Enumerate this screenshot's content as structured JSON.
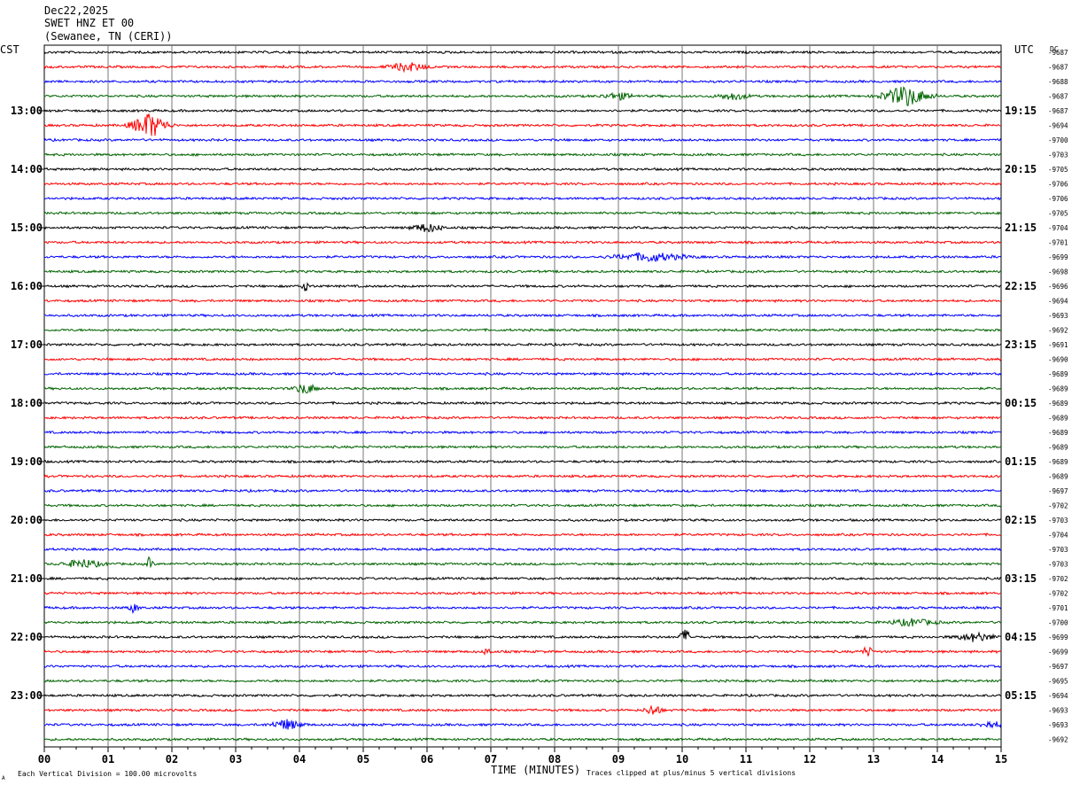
{
  "header": {
    "date": "Dec22,2025",
    "station": "SWET HNZ ET 00",
    "location": "(Sewanee, TN (CERI))"
  },
  "left_zone": "CST",
  "right_zone": "UTC",
  "dc_label": "DC",
  "footer": {
    "xlabel": "TIME (MINUTES)",
    "scale_note": "Each Vertical Division =  100.00 microvolts",
    "clip_note": "Traces clipped at plus/minus 5 vertical divisions",
    "corner_mark": "A"
  },
  "chart_data": {
    "type": "line",
    "title": "SWET HNZ ET 00",
    "xlabel": "TIME (MINUTES)",
    "xlim": [
      0,
      15
    ],
    "x_ticks": [
      "00",
      "01",
      "02",
      "03",
      "04",
      "05",
      "06",
      "07",
      "08",
      "09",
      "10",
      "11",
      "12",
      "13",
      "14",
      "15"
    ],
    "trace_colors": [
      "#000000",
      "#ff0000",
      "#0000ff",
      "#006400"
    ],
    "left_hour_labels": [
      "13:00",
      "14:00",
      "15:00",
      "16:00",
      "17:00",
      "18:00",
      "19:00",
      "20:00",
      "21:00",
      "22:00",
      "23:00"
    ],
    "right_hour_labels": [
      "19:15",
      "20:15",
      "21:15",
      "22:15",
      "23:15",
      "00:15",
      "01:15",
      "02:15",
      "03:15",
      "04:15",
      "05:15"
    ],
    "hour_label_first_trace": 4,
    "dc_offsets": [
      "-9687",
      "-9687",
      "-9688",
      "-9687",
      "-9687",
      "-9694",
      "-9700",
      "-9703",
      "-9705",
      "-9706",
      "-9706",
      "-9705",
      "-9704",
      "-9701",
      "-9699",
      "-9698",
      "-9696",
      "-9694",
      "-9693",
      "-9692",
      "-9691",
      "-9690",
      "-9689",
      "-9689",
      "-9689",
      "-9689",
      "-9689",
      "-9689",
      "-9689",
      "-9689",
      "-9697",
      "-9702",
      "-9703",
      "-9704",
      "-9703",
      "-9703",
      "-9702",
      "-9702",
      "-9701",
      "-9700",
      "-9699",
      "-9699",
      "-9697",
      "-9695",
      "-9694",
      "-9693",
      "-9693",
      "-9692"
    ],
    "events": [
      {
        "trace": 1,
        "minute": 5.7,
        "amp": 5,
        "dur": 0.5
      },
      {
        "trace": 3,
        "minute": 9.0,
        "amp": 4,
        "dur": 0.4
      },
      {
        "trace": 3,
        "minute": 10.8,
        "amp": 4,
        "dur": 0.4
      },
      {
        "trace": 3,
        "minute": 13.5,
        "amp": 12,
        "dur": 0.6
      },
      {
        "trace": 5,
        "minute": 1.65,
        "amp": 15,
        "dur": 0.45
      },
      {
        "trace": 12,
        "minute": 6.0,
        "amp": 5,
        "dur": 0.4
      },
      {
        "trace": 14,
        "minute": 9.5,
        "amp": 5,
        "dur": 0.9
      },
      {
        "trace": 16,
        "minute": 4.1,
        "amp": 5,
        "dur": 0.15
      },
      {
        "trace": 23,
        "minute": 4.1,
        "amp": 6,
        "dur": 0.3
      },
      {
        "trace": 35,
        "minute": 0.6,
        "amp": 5,
        "dur": 0.5
      },
      {
        "trace": 35,
        "minute": 1.65,
        "amp": 8,
        "dur": 0.08
      },
      {
        "trace": 38,
        "minute": 1.4,
        "amp": 5,
        "dur": 0.15
      },
      {
        "trace": 39,
        "minute": 13.6,
        "amp": 4,
        "dur": 0.6
      },
      {
        "trace": 40,
        "minute": 10.05,
        "amp": 9,
        "dur": 0.15
      },
      {
        "trace": 40,
        "minute": 14.6,
        "amp": 5,
        "dur": 0.5
      },
      {
        "trace": 41,
        "minute": 12.9,
        "amp": 6,
        "dur": 0.15
      },
      {
        "trace": 41,
        "minute": 6.95,
        "amp": 5,
        "dur": 0.1
      },
      {
        "trace": 45,
        "minute": 9.55,
        "amp": 7,
        "dur": 0.2
      },
      {
        "trace": 46,
        "minute": 3.8,
        "amp": 6,
        "dur": 0.4
      },
      {
        "trace": 46,
        "minute": 14.85,
        "amp": 4,
        "dur": 0.3
      }
    ]
  }
}
